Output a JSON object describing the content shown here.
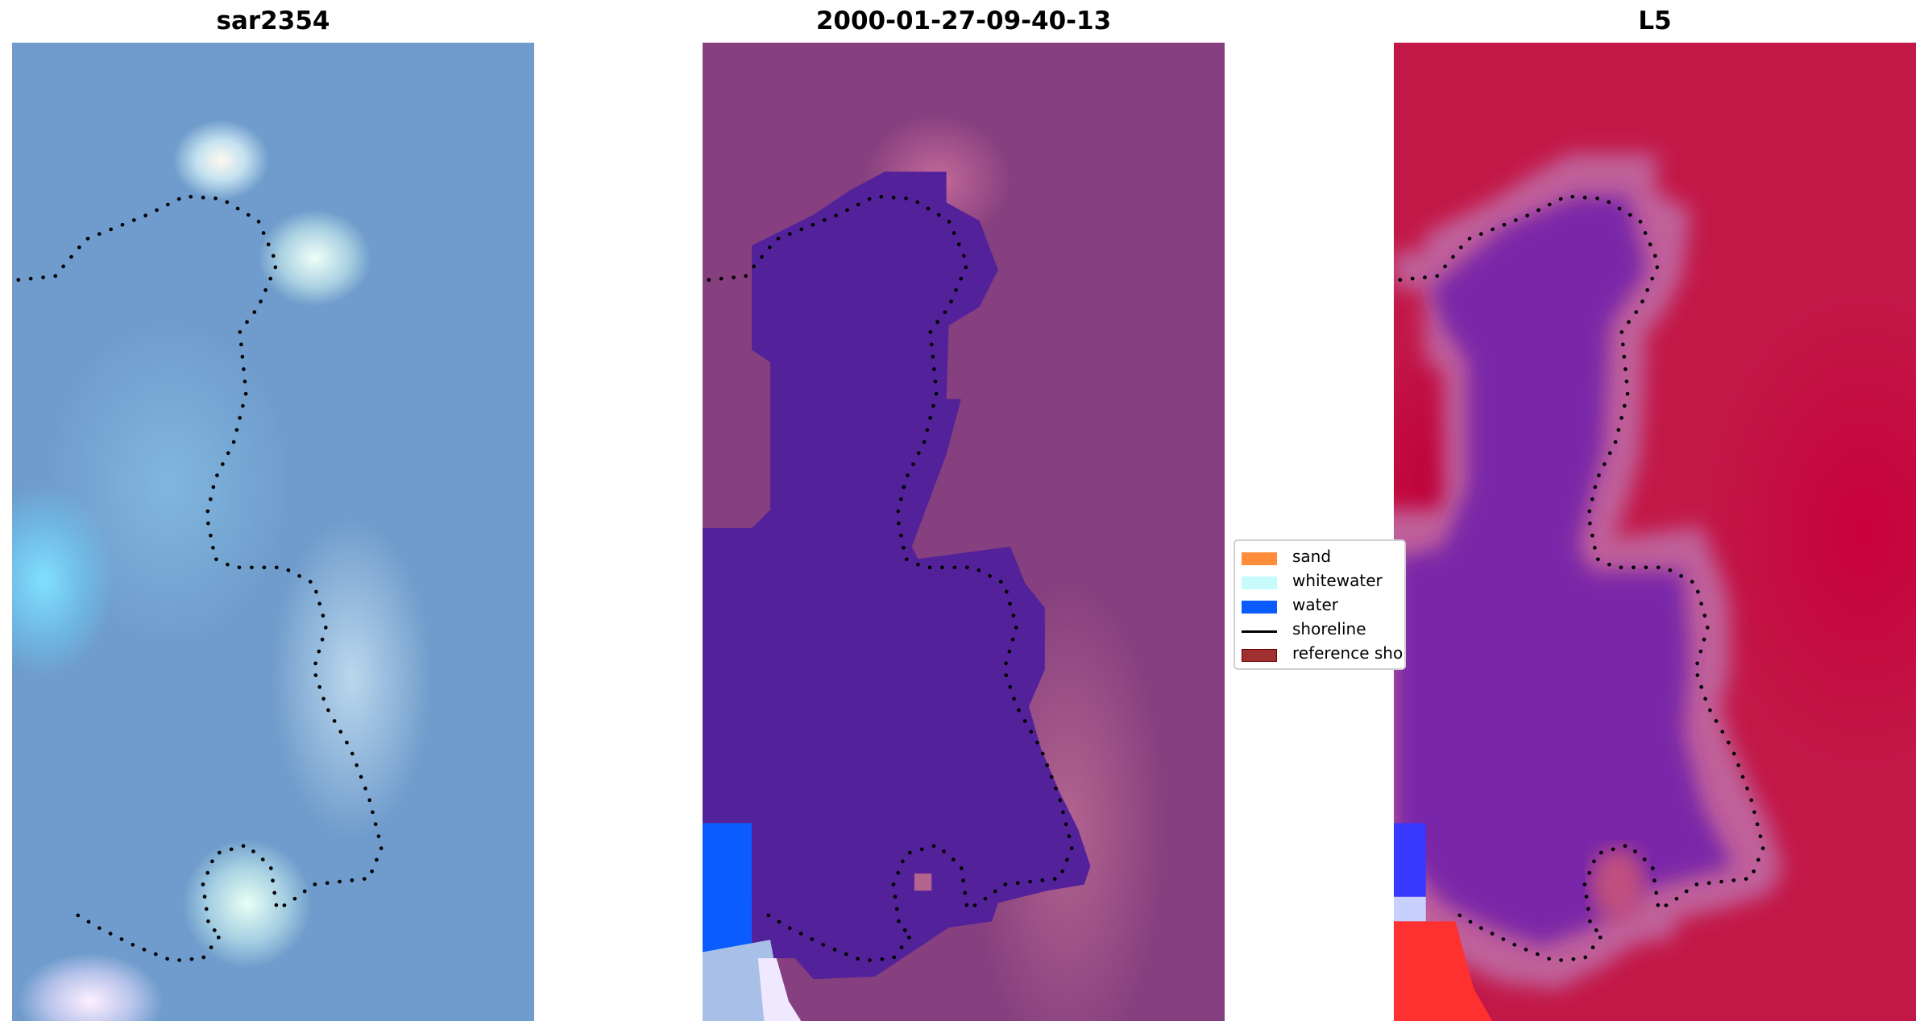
{
  "panels": [
    {
      "title": "sar2354"
    },
    {
      "title": "2000-01-27-09-40-13"
    },
    {
      "title": "L5"
    }
  ],
  "legend": {
    "items": [
      {
        "label": "sand",
        "color": "#ff8c3a",
        "type": "patch"
      },
      {
        "label": "whitewater",
        "color": "#c8fbfb",
        "type": "patch"
      },
      {
        "label": "water",
        "color": "#0a5cff",
        "type": "patch"
      },
      {
        "label": "shoreline",
        "color": "#000000",
        "type": "line"
      },
      {
        "label": "reference shoreline",
        "color": "#a03030",
        "type": "patch"
      }
    ]
  },
  "colors": {
    "water_class": "#53219a",
    "water_blue": "#0a5cff",
    "panel3_red": "#c21848",
    "panel3_purple": "#7a28a8"
  }
}
